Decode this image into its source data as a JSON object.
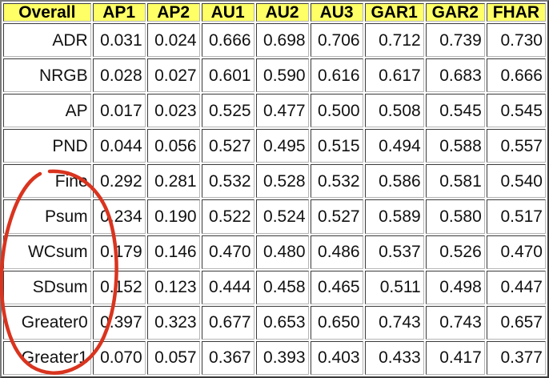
{
  "table": {
    "headers": [
      "Overall",
      "AP1",
      "AP2",
      "AU1",
      "AU2",
      "AU3",
      "GAR1",
      "GAR2",
      "FHAR"
    ],
    "rows": [
      {
        "label": "ADR",
        "values": [
          "0.031",
          "0.024",
          "0.666",
          "0.698",
          "0.706",
          "0.712",
          "0.739",
          "0.730"
        ]
      },
      {
        "label": "NRGB",
        "values": [
          "0.028",
          "0.027",
          "0.601",
          "0.590",
          "0.616",
          "0.617",
          "0.683",
          "0.666"
        ]
      },
      {
        "label": "AP",
        "values": [
          "0.017",
          "0.023",
          "0.525",
          "0.477",
          "0.500",
          "0.508",
          "0.545",
          "0.545"
        ]
      },
      {
        "label": "PND",
        "values": [
          "0.044",
          "0.056",
          "0.527",
          "0.495",
          "0.515",
          "0.494",
          "0.588",
          "0.557"
        ]
      },
      {
        "label": "Fine",
        "values": [
          "0.292",
          "0.281",
          "0.532",
          "0.528",
          "0.532",
          "0.586",
          "0.581",
          "0.540"
        ]
      },
      {
        "label": "Psum",
        "values": [
          "0.234",
          "0.190",
          "0.522",
          "0.524",
          "0.527",
          "0.589",
          "0.580",
          "0.517"
        ]
      },
      {
        "label": "WCsum",
        "values": [
          "0.179",
          "0.146",
          "0.470",
          "0.480",
          "0.486",
          "0.537",
          "0.526",
          "0.470"
        ]
      },
      {
        "label": "SDsum",
        "values": [
          "0.152",
          "0.123",
          "0.444",
          "0.458",
          "0.465",
          "0.511",
          "0.498",
          "0.447"
        ]
      },
      {
        "label": "Greater0",
        "values": [
          "0.397",
          "0.323",
          "0.677",
          "0.653",
          "0.650",
          "0.743",
          "0.743",
          "0.657"
        ]
      },
      {
        "label": "Greater1",
        "values": [
          "0.070",
          "0.057",
          "0.367",
          "0.393",
          "0.403",
          "0.433",
          "0.417",
          "0.377"
        ]
      }
    ]
  },
  "colors": {
    "header_bg": "#ffff66",
    "annotation_stroke": "#d9341f"
  },
  "annotation": {
    "shape": "hand-drawn ellipse",
    "encloses_rows": [
      "Fine",
      "Psum",
      "WCsum",
      "SDsum",
      "Greater0",
      "Greater1"
    ]
  }
}
